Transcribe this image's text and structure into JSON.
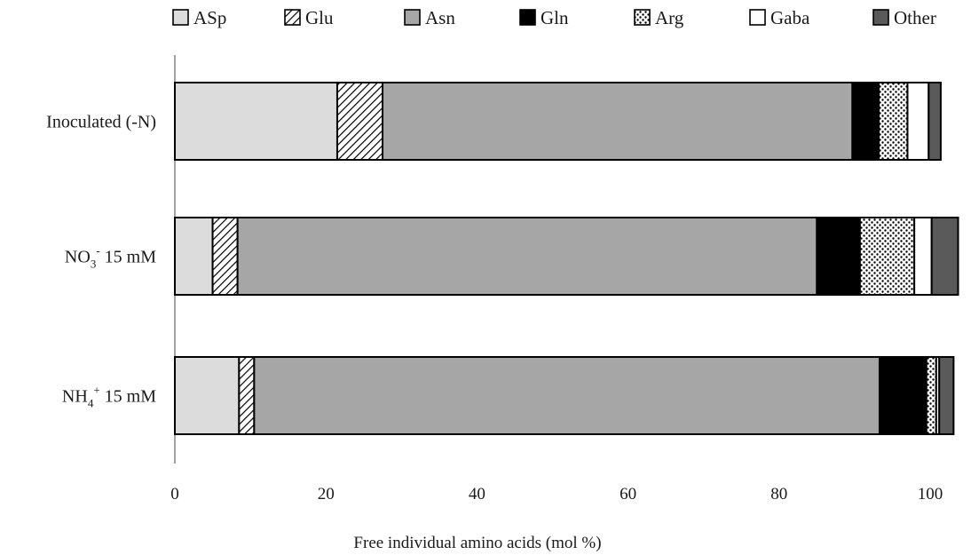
{
  "chart_data": {
    "type": "bar",
    "orientation": "horizontal",
    "stacked": true,
    "title": "",
    "xlabel": "Free individual amino acids (mol %)",
    "ylabel": "",
    "xlim": [
      0,
      100
    ],
    "xticks": [
      "0",
      "20",
      "40",
      "60",
      "80",
      "100"
    ],
    "grid": false,
    "legend_position": "top",
    "categories": [
      {
        "label": "Inoculated (-N)"
      },
      {
        "label": "NO",
        "sub": "3",
        "sup": "-",
        "rest": " 15 mM"
      },
      {
        "label": "NH",
        "sub": "4",
        "sup": "+",
        "rest": " 15 mM"
      }
    ],
    "series": [
      {
        "name": "ASp",
        "pattern": "solid",
        "color": "#dcdcdc",
        "values": [
          21.5,
          5.0,
          8.5
        ]
      },
      {
        "name": "Glu",
        "pattern": "diag",
        "color": "#ffffff",
        "values": [
          6.0,
          3.3,
          2.0
        ]
      },
      {
        "name": "Asn",
        "pattern": "solid",
        "color": "#a6a6a6",
        "values": [
          62.2,
          76.7,
          82.8
        ]
      },
      {
        "name": "Gln",
        "pattern": "solid",
        "color": "#000000",
        "values": [
          3.5,
          5.7,
          6.2
        ]
      },
      {
        "name": "Arg",
        "pattern": "dots",
        "color": "#ffffff",
        "values": [
          3.8,
          7.2,
          1.3
        ]
      },
      {
        "name": "Gaba",
        "pattern": "solid",
        "color": "#ffffff",
        "values": [
          2.8,
          2.3,
          0.4
        ]
      },
      {
        "name": "Other",
        "pattern": "solid",
        "color": "#5a5a5a",
        "values": [
          1.6,
          3.5,
          1.9
        ]
      }
    ]
  }
}
